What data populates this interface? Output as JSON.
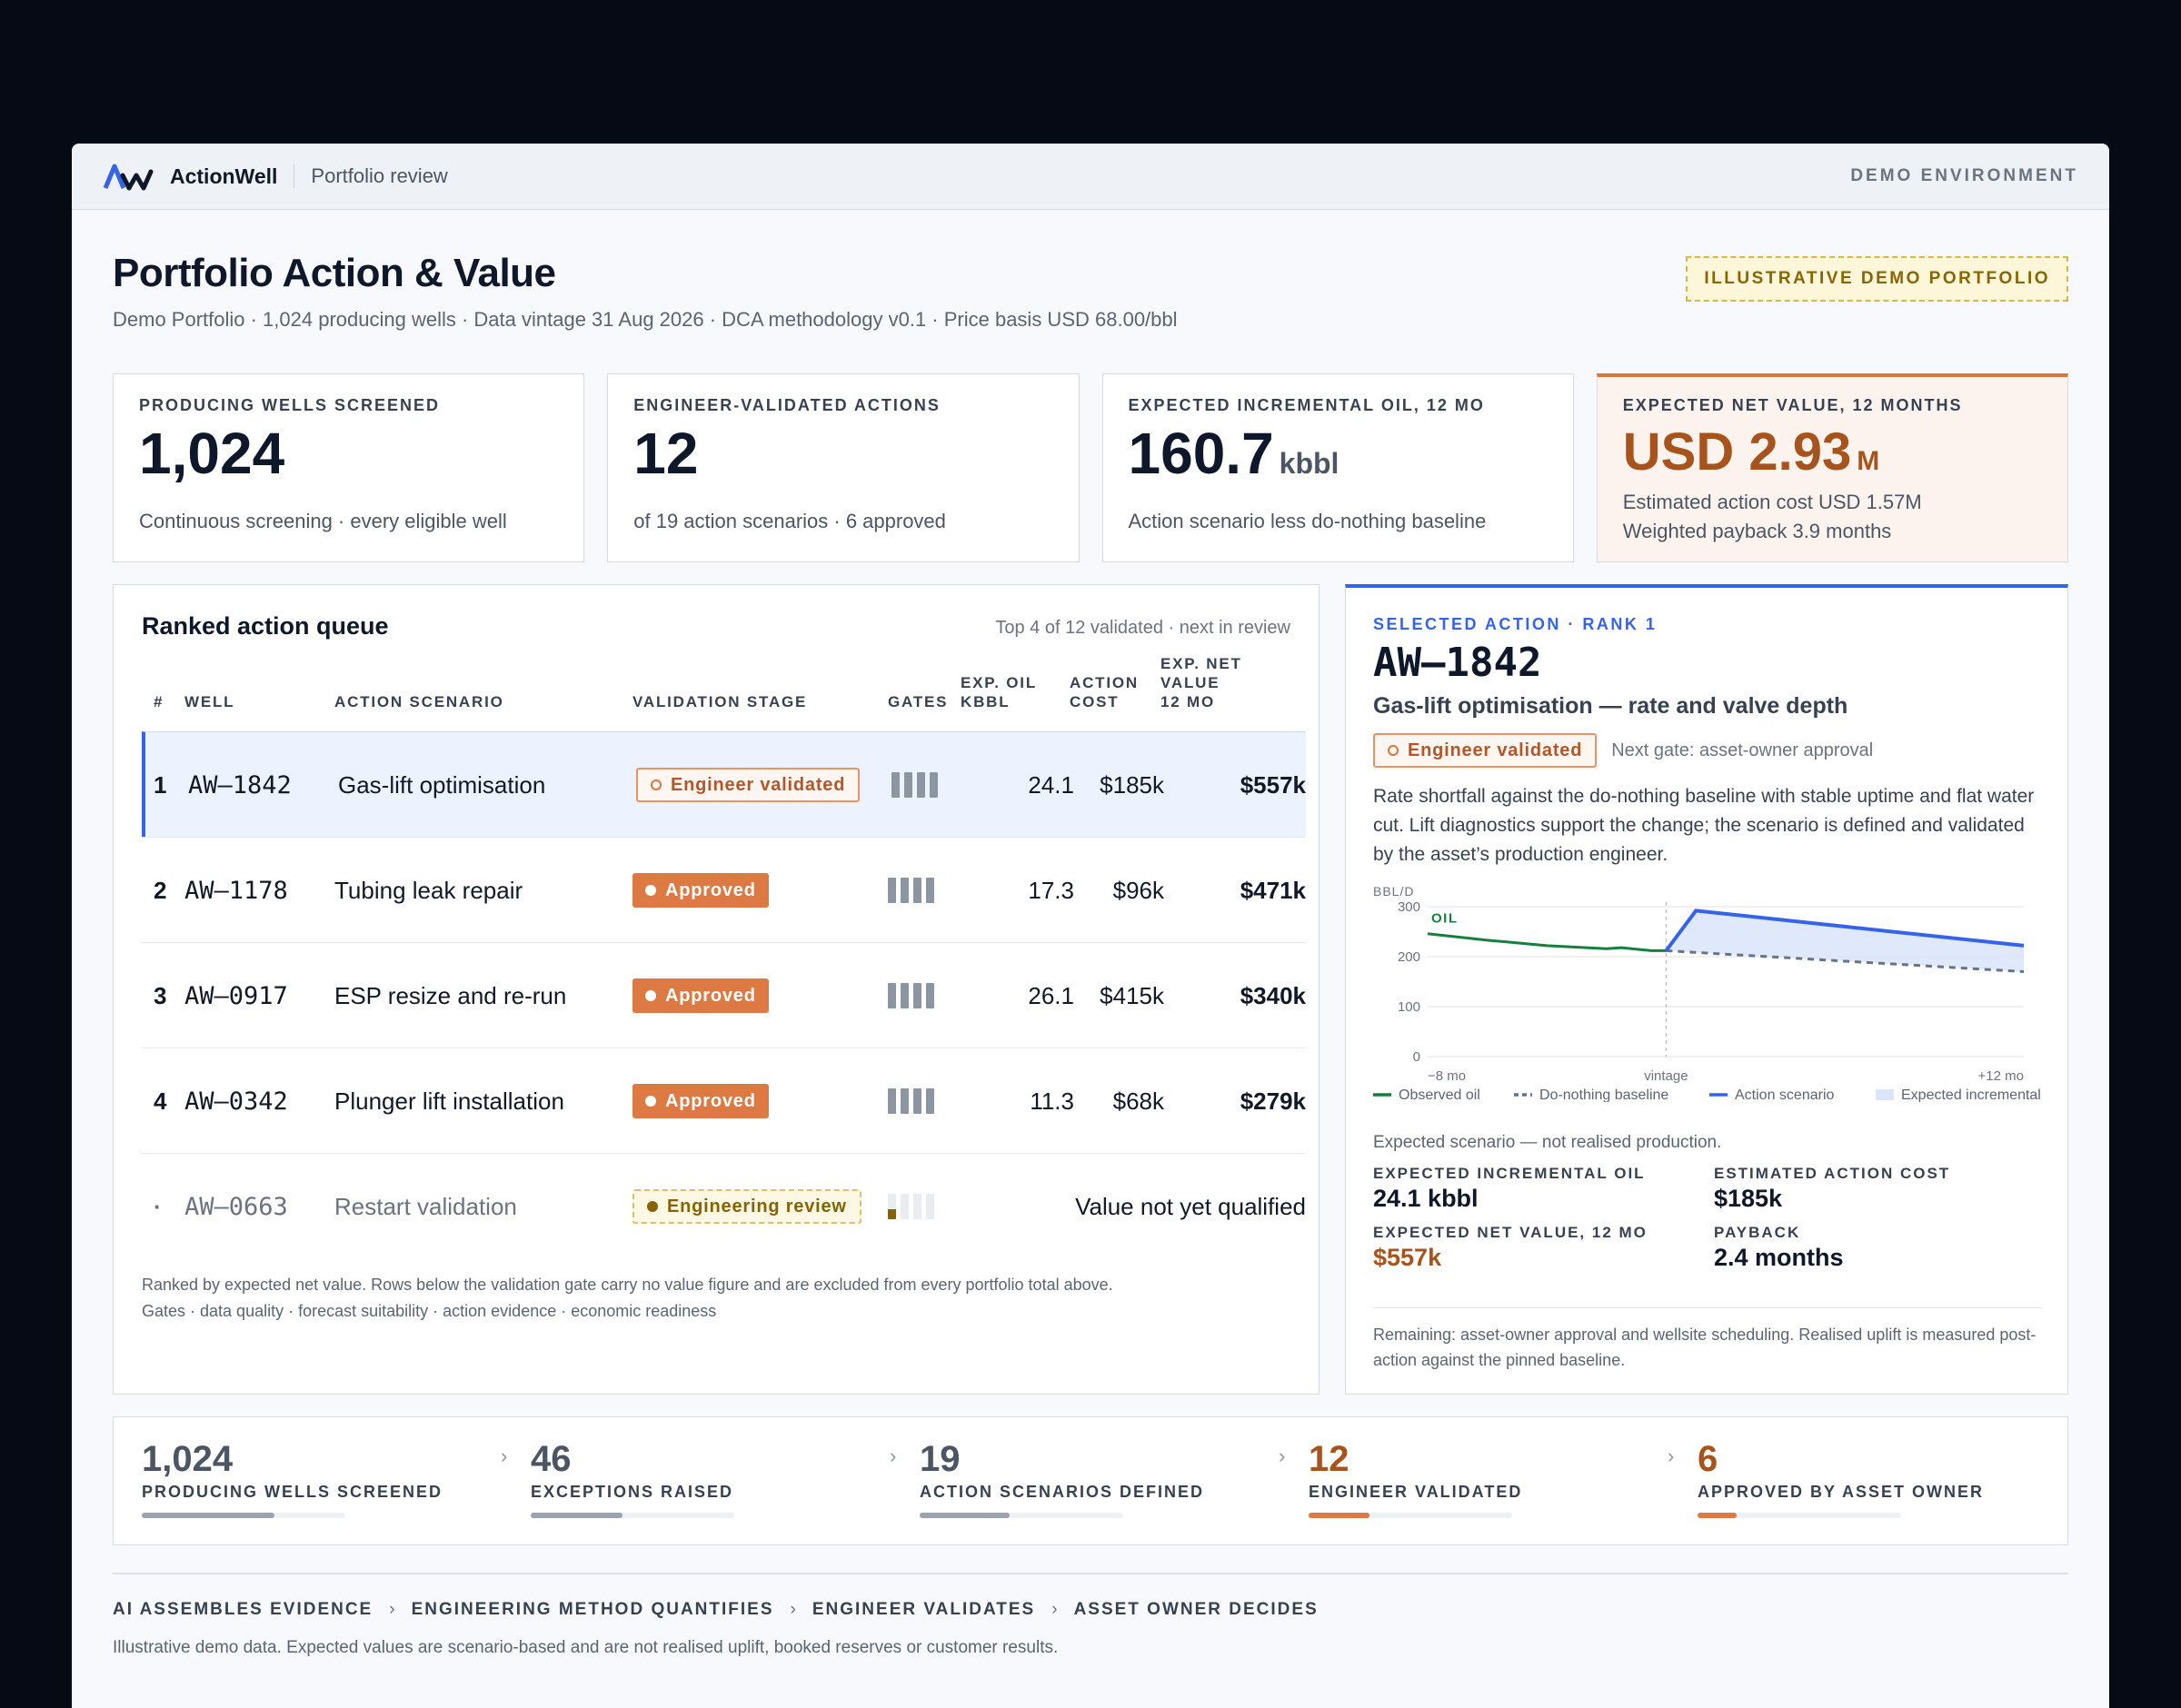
{
  "app": {
    "brand": "ActionWell",
    "breadcrumb": "Portfolio review",
    "environment": "DEMO ENVIRONMENT"
  },
  "page": {
    "title": "Portfolio Action & Value",
    "subtitle": "Demo Portfolio · 1,024 producing wells · Data vintage 31 Aug 2026 · DCA methodology v0.1 · Price basis USD 68.00/bbl",
    "badge": "ILLUSTRATIVE DEMO PORTFOLIO"
  },
  "kpis": [
    {
      "label": "PRODUCING WELLS SCREENED",
      "value": "1,024",
      "unit": "",
      "note": "Continuous screening · every eligible well"
    },
    {
      "label": "ENGINEER-VALIDATED ACTIONS",
      "value": "12",
      "unit": "",
      "note": "of 19 action scenarios · 6 approved"
    },
    {
      "label": "EXPECTED INCREMENTAL OIL, 12 MO",
      "value": "160.7",
      "unit": "kbbl",
      "note": "Action scenario less do-nothing baseline"
    },
    {
      "label": "EXPECTED NET VALUE, 12 MONTHS",
      "value": "USD 2.93",
      "unit": "M",
      "note": "Estimated action cost USD 1.57M",
      "note2": "Weighted payback 3.9 months"
    }
  ],
  "queue": {
    "title": "Ranked action queue",
    "meta": "Top 4 of 12 validated · next in review",
    "headers": {
      "rank": "#",
      "well": "WELL",
      "scenario": "ACTION SCENARIO",
      "stage": "VALIDATION STAGE",
      "gates": "GATES",
      "oil1": "EXP. OIL",
      "oil2": "KBBL",
      "cost1": "ACTION",
      "cost2": "COST",
      "net1": "EXP. NET",
      "net2": "VALUE",
      "net3": "12 MO"
    },
    "rows": [
      {
        "rank": "1",
        "well": "AW–1842",
        "scenario": "Gas-lift optimisation",
        "stage": "Engineer validated",
        "oil": "24.1",
        "cost": "$185k",
        "net": "$557k"
      },
      {
        "rank": "2",
        "well": "AW–1178",
        "scenario": "Tubing leak repair",
        "stage": "Approved",
        "oil": "17.3",
        "cost": "$96k",
        "net": "$471k"
      },
      {
        "rank": "3",
        "well": "AW–0917",
        "scenario": "ESP resize and re-run",
        "stage": "Approved",
        "oil": "26.1",
        "cost": "$415k",
        "net": "$340k"
      },
      {
        "rank": "4",
        "well": "AW–0342",
        "scenario": "Plunger lift installation",
        "stage": "Approved",
        "oil": "11.3",
        "cost": "$68k",
        "net": "$279k"
      }
    ],
    "pending": {
      "rank": "·",
      "well": "AW–0663",
      "scenario": "Restart validation",
      "stage": "Engineering review",
      "value_note": "Value not yet qualified"
    },
    "foot1": "Ranked by expected net value. Rows below the validation gate carry no value figure and are excluded from every portfolio total above.",
    "foot2": "Gates · data quality · forecast suitability · action evidence · economic readiness"
  },
  "detail": {
    "kicker": "SELECTED ACTION · RANK 1",
    "well": "AW–1842",
    "scenario": "Gas-lift optimisation — rate and valve depth",
    "stage": "Engineer validated",
    "next_gate": "Next gate: asset-owner approval",
    "description": "Rate shortfall against the do-nothing baseline with stable uptime and flat water cut. Lift diagnostics support the change; the scenario is defined and validated by the asset’s production engineer.",
    "caption": "Expected scenario — not realised production.",
    "stats": [
      {
        "label": "EXPECTED INCREMENTAL OIL",
        "value": "24.1 kbbl"
      },
      {
        "label": "ESTIMATED ACTION COST",
        "value": "$185k"
      },
      {
        "label": "EXPECTED NET VALUE, 12 MO",
        "value": "$557k"
      },
      {
        "label": "PAYBACK",
        "value": "2.4 months"
      }
    ],
    "foot": "Remaining: asset-owner approval and wellsite scheduling. Realised uplift is measured post-action against the pinned baseline."
  },
  "chart_data": {
    "type": "line",
    "ylabel": "BBL/D",
    "ylim": [
      0,
      300
    ],
    "yticks": [
      "300",
      "200",
      "100",
      "0"
    ],
    "xticks": [
      "−8 mo",
      "vintage",
      "+12 mo"
    ],
    "series_label": "OIL",
    "series": [
      {
        "name": "Observed oil",
        "x": [
          -8,
          -6,
          -4,
          -2,
          -1.5,
          -0.5,
          0
        ],
        "y": [
          246,
          233,
          222,
          216,
          218,
          212,
          212
        ]
      },
      {
        "name": "Do-nothing baseline",
        "x": [
          0,
          12
        ],
        "y": [
          212,
          170
        ]
      },
      {
        "name": "Action scenario",
        "x": [
          0,
          1,
          12
        ],
        "y": [
          212,
          292,
          222
        ]
      }
    ],
    "legend": [
      "Observed oil",
      "Do-nothing baseline",
      "Action scenario",
      "Expected incremental"
    ],
    "colors": {
      "observed": "#15803d",
      "baseline": "#64748b",
      "scenario": "#3563e9",
      "incremental": "#dbe5fb"
    }
  },
  "funnel": [
    {
      "value": "1,024",
      "label": "PRODUCING WELLS SCREENED",
      "fraction": 0.65
    },
    {
      "value": "46",
      "label": "EXCEPTIONS RAISED",
      "fraction": 0.45
    },
    {
      "value": "19",
      "label": "ACTION SCENARIOS DEFINED",
      "fraction": 0.44
    },
    {
      "value": "12",
      "label": "ENGINEER VALIDATED",
      "fraction": 0.3
    },
    {
      "value": "6",
      "label": "APPROVED BY ASSET OWNER",
      "fraction": 0.19
    }
  ],
  "pipeline": [
    "AI ASSEMBLES EVIDENCE",
    "ENGINEERING METHOD QUANTIFIES",
    "ENGINEER VALIDATES",
    "ASSET OWNER DECIDES"
  ],
  "disclaimer": "Illustrative demo data. Expected values are scenario-based and are not realised uplift, booked reserves or customer results."
}
